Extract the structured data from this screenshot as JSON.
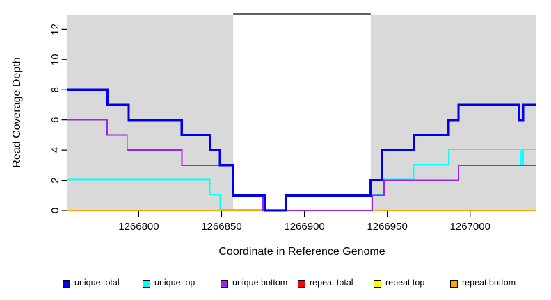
{
  "figure": {
    "background": "#ffffff",
    "masked_region_color": "#d9d9d9",
    "gap_border_color": "#000000"
  },
  "x_axis": {
    "label": "Coordinate in Reference Genome"
  },
  "y_axis": {
    "label": "Read Coverage Depth"
  },
  "legend": {
    "items": [
      {
        "label": "unique total",
        "color": "#0000EE"
      },
      {
        "label": "unique top",
        "color": "#00FFFF"
      },
      {
        "label": "unique bottom",
        "color": "#A020F0"
      },
      {
        "label": "repeat total",
        "color": "#FF0000"
      },
      {
        "label": "repeat top",
        "color": "#FFFF00"
      },
      {
        "label": "repeat bottom",
        "color": "#FFA500"
      }
    ],
    "item_x": [
      90,
      205,
      317,
      428,
      537,
      647
    ]
  },
  "chart_data": {
    "type": "line",
    "subtype": "step-function read coverage",
    "title": "",
    "xlabel": "Coordinate in Reference Genome",
    "ylabel": "Read Coverage Depth",
    "xlim": [
      1266757,
      1267040
    ],
    "ylim": [
      0,
      13
    ],
    "x_ticks": [
      1266800,
      1266850,
      1266900,
      1266950,
      1267000
    ],
    "y_ticks": [
      0,
      2,
      4,
      6,
      8,
      10,
      12
    ],
    "grid": false,
    "legend_position": "bottom",
    "masked_regions": [
      [
        1266757,
        1266857
      ],
      [
        1266940,
        1267040
      ]
    ],
    "uncovered_gap": [
      1266857,
      1266940
    ],
    "series": [
      {
        "name": "repeat total",
        "color": "#FF0000",
        "line_width": 1.8,
        "dy": 0,
        "steps": [
          [
            1266757,
            0
          ]
        ],
        "x_end": 1267040
      },
      {
        "name": "repeat top",
        "color": "#FFFF00",
        "line_width": 1.8,
        "dy": 0,
        "steps": [
          [
            1266757,
            0
          ]
        ],
        "x_end": 1267040
      },
      {
        "name": "repeat bottom",
        "color": "#FFA500",
        "line_width": 1.8,
        "dy": 0,
        "steps": [
          [
            1266757,
            0
          ]
        ],
        "x_end": 1267040
      },
      {
        "name": "unique top",
        "color": "#00FFFF",
        "line_width": 1.7,
        "dy": -1.1,
        "steps": [
          [
            1266757,
            2
          ],
          [
            1266843,
            1
          ],
          [
            1266849,
            0
          ],
          [
            1266889,
            1
          ],
          [
            1266948,
            2
          ],
          [
            1266966,
            3
          ],
          [
            1266987,
            4
          ],
          [
            1267030.5,
            3
          ],
          [
            1267032,
            4
          ]
        ],
        "x_end": 1267040
      },
      {
        "name": "unique bottom",
        "color": "#A020F0",
        "line_width": 1.9,
        "dy": 0,
        "steps": [
          [
            1266757,
            6
          ],
          [
            1266781,
            5
          ],
          [
            1266793,
            4
          ],
          [
            1266826,
            3
          ],
          [
            1266857,
            1
          ],
          [
            1266875,
            0
          ],
          [
            1266941,
            1
          ],
          [
            1266948,
            2
          ],
          [
            1266993,
            3
          ]
        ],
        "x_end": 1267040
      },
      {
        "name": "unique total",
        "color": "#0000EE",
        "line_width": 3.2,
        "dy": 0,
        "steps": [
          [
            1266757,
            8
          ],
          [
            1266781,
            7
          ],
          [
            1266794,
            6
          ],
          [
            1266826,
            5
          ],
          [
            1266843,
            4
          ],
          [
            1266849,
            3
          ],
          [
            1266857,
            1
          ],
          [
            1266876,
            0
          ],
          [
            1266889,
            1
          ],
          [
            1266940,
            2
          ],
          [
            1266947,
            4
          ],
          [
            1266966,
            5
          ],
          [
            1266987,
            6
          ],
          [
            1266993,
            7
          ],
          [
            1267029.5,
            6
          ],
          [
            1267032,
            7
          ]
        ],
        "x_end": 1267040
      }
    ]
  }
}
